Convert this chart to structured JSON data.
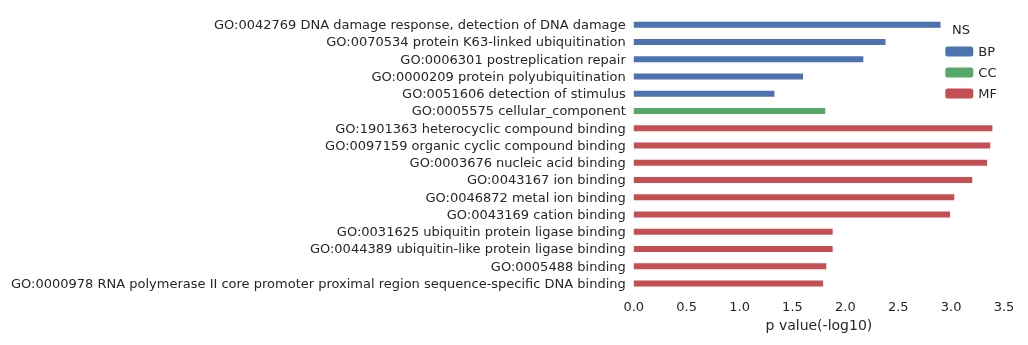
{
  "chart_data": {
    "type": "bar",
    "orientation": "horizontal",
    "stacked": true,
    "xlabel": "p value(-log10)",
    "legend_title": "NS",
    "legend": "top right",
    "grid": false,
    "categories": [
      "GO:0042769 DNA damage response, detection of DNA damage",
      "GO:0070534 protein K63-linked ubiquitination",
      "GO:0006301 postreplication repair",
      "GO:0000209 protein polyubiquitination",
      "GO:0051606 detection of stimulus",
      "GO:0005575 cellular_component",
      "GO:1901363 heterocyclic compound binding",
      "GO:0097159 organic cyclic compound binding",
      "GO:0003676 nucleic acid binding",
      "GO:0043167 ion binding",
      "GO:0046872 metal ion binding",
      "GO:0043169 cation binding",
      "GO:0031625 ubiquitin protein ligase binding",
      "GO:0044389 ubiquitin-like protein ligase binding",
      "GO:0005488 binding",
      "GO:0000978 RNA polymerase II core promoter proximal region sequence-specific DNA binding"
    ],
    "series": [
      {
        "name": "BP",
        "color": "#4c72b0",
        "values": [
          2.9,
          2.38,
          2.17,
          1.6,
          1.33,
          null,
          null,
          null,
          null,
          null,
          null,
          null,
          null,
          null,
          null,
          null
        ]
      },
      {
        "name": "CC",
        "color": "#55a868",
        "values": [
          null,
          null,
          null,
          null,
          null,
          1.81,
          null,
          null,
          null,
          null,
          null,
          null,
          null,
          null,
          null,
          null
        ]
      },
      {
        "name": "MF",
        "color": "#c44e52",
        "values": [
          null,
          null,
          null,
          null,
          null,
          null,
          3.39,
          3.37,
          3.34,
          3.2,
          3.03,
          2.99,
          1.88,
          1.88,
          1.82,
          1.79
        ]
      }
    ],
    "xlim": [
      0,
      3.5
    ],
    "xticks": [
      {
        "value": 0,
        "label": "0.0"
      },
      {
        "value": 0.5,
        "label": "0.5"
      },
      {
        "value": 1,
        "label": "1.0"
      },
      {
        "value": 1.5,
        "label": "1.5"
      },
      {
        "value": 2,
        "label": "2.0"
      },
      {
        "value": 2.5,
        "label": "2.5"
      },
      {
        "value": 3,
        "label": "3.0"
      },
      {
        "value": 3.5,
        "label": "3.5"
      }
    ]
  }
}
